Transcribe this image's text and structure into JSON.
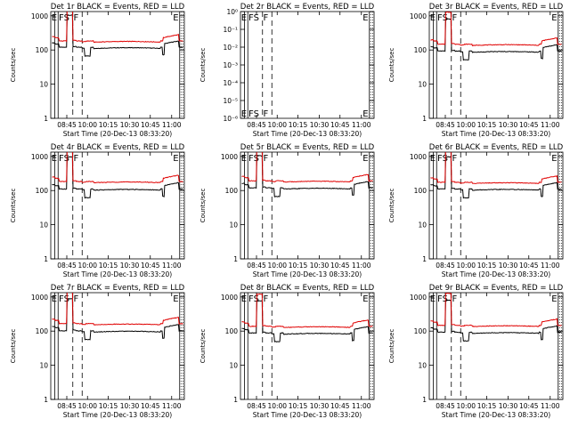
{
  "figure": {
    "ylabel": "Counts/sec",
    "xlabel": "Start Time (20-Dec-13 08:33:20)",
    "x_ticks": [
      "08:45",
      "10:00",
      "10:15",
      "10:30",
      "10:45",
      "11:00"
    ],
    "flag_labels": [
      "E",
      "FS",
      "F",
      "E"
    ]
  },
  "colors": {
    "events": "#000000",
    "lld": "#e00000"
  },
  "chart_data": [
    {
      "type": "line",
      "title": "Det 1r BLACK = Events, RED = LLD",
      "yscale": "log",
      "yticks": [
        "1",
        "10",
        "100",
        "1000"
      ],
      "series": [
        {
          "name": "Events",
          "color": "black",
          "base": 130
        },
        {
          "name": "LLD",
          "color": "red",
          "base": 200
        }
      ]
    },
    {
      "type": "line",
      "title": "Det 2r BLACK = Events, RED = LLD",
      "yscale": "log",
      "yticks": [
        "10⁻⁶",
        "10⁻⁵",
        "10⁻⁴",
        "10⁻³",
        "10⁻²",
        "10⁻¹",
        "10⁰"
      ],
      "series": []
    },
    {
      "type": "line",
      "title": "Det 3r BLACK = Events, RED = LLD",
      "yscale": "log",
      "yticks": [
        "1",
        "10",
        "100",
        "1000"
      ],
      "series": [
        {
          "name": "Events",
          "color": "black",
          "base": 100
        },
        {
          "name": "LLD",
          "color": "red",
          "base": 160
        }
      ]
    },
    {
      "type": "line",
      "title": "Det 4r BLACK = Events, RED = LLD",
      "yscale": "log",
      "yticks": [
        "1",
        "10",
        "100",
        "1000"
      ],
      "series": [
        {
          "name": "Events",
          "color": "black",
          "base": 120
        },
        {
          "name": "LLD",
          "color": "red",
          "base": 200
        }
      ]
    },
    {
      "type": "line",
      "title": "Det 5r BLACK = Events, RED = LLD",
      "yscale": "log",
      "yticks": [
        "1",
        "10",
        "100",
        "1000"
      ],
      "series": [
        {
          "name": "Events",
          "color": "black",
          "base": 130
        },
        {
          "name": "LLD",
          "color": "red",
          "base": 210
        }
      ]
    },
    {
      "type": "line",
      "title": "Det 6r BLACK = Events, RED = LLD",
      "yscale": "log",
      "yticks": [
        "1",
        "10",
        "100",
        "1000"
      ],
      "series": [
        {
          "name": "Events",
          "color": "black",
          "base": 120
        },
        {
          "name": "LLD",
          "color": "red",
          "base": 190
        }
      ]
    },
    {
      "type": "line",
      "title": "Det 7r BLACK = Events, RED = LLD",
      "yscale": "log",
      "yticks": [
        "1",
        "10",
        "100",
        "1000"
      ],
      "series": [
        {
          "name": "Events",
          "color": "black",
          "base": 110
        },
        {
          "name": "LLD",
          "color": "red",
          "base": 180
        }
      ]
    },
    {
      "type": "line",
      "title": "Det 8r BLACK = Events, RED = LLD",
      "yscale": "log",
      "yticks": [
        "1",
        "10",
        "100",
        "1000"
      ],
      "series": [
        {
          "name": "Events",
          "color": "black",
          "base": 95
        },
        {
          "name": "LLD",
          "color": "red",
          "base": 150
        }
      ]
    },
    {
      "type": "line",
      "title": "Det 9r BLACK = Events, RED = LLD",
      "yscale": "log",
      "yticks": [
        "1",
        "10",
        "100",
        "1000"
      ],
      "series": [
        {
          "name": "Events",
          "color": "black",
          "base": 100
        },
        {
          "name": "LLD",
          "color": "red",
          "base": 160
        }
      ]
    }
  ]
}
